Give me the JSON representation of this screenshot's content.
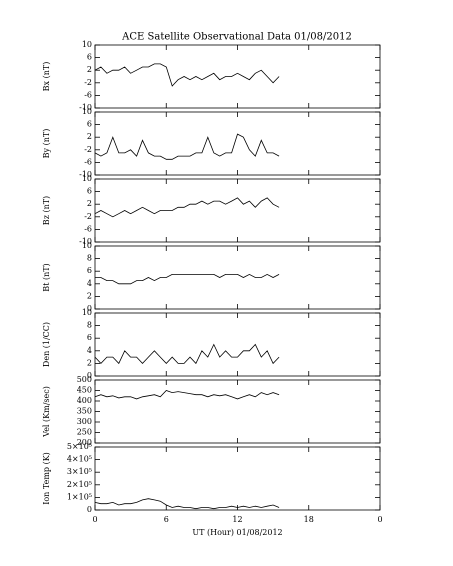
{
  "chart_data": [
    {
      "type": "line",
      "title": "ACE Satellite Observational Data   01/08/2012",
      "ylabel": "Bx (nT)",
      "color": "#000000",
      "x": [
        0,
        0.5,
        1,
        1.5,
        2,
        2.5,
        3,
        3.5,
        4,
        4.5,
        5,
        5.5,
        6,
        6.5,
        7,
        7.5,
        8,
        8.5,
        9,
        9.5,
        10,
        10.5,
        11,
        11.5,
        12,
        12.5,
        13,
        13.5,
        14,
        14.5,
        15,
        15.5
      ],
      "values": [
        2,
        3,
        1,
        2,
        2,
        3,
        1,
        2,
        3,
        3,
        4,
        4,
        3,
        -3,
        -1,
        0,
        -1,
        0,
        -1,
        0,
        1,
        -1,
        0,
        0,
        1,
        0,
        -1,
        1,
        2,
        0,
        -2,
        0
      ],
      "xlim": [
        0,
        24
      ],
      "xticks": [
        0,
        6,
        12,
        18,
        {
          "value": 24,
          "label": "0"
        }
      ],
      "ylim": [
        -10,
        10
      ],
      "yticks": [
        -10,
        -6,
        -2,
        2,
        6,
        10
      ]
    },
    {
      "type": "line",
      "ylabel": "By (nT)",
      "color": "#000000",
      "x": [
        0,
        0.5,
        1,
        1.5,
        2,
        2.5,
        3,
        3.5,
        4,
        4.5,
        5,
        5.5,
        6,
        6.5,
        7,
        7.5,
        8,
        8.5,
        9,
        9.5,
        10,
        10.5,
        11,
        11.5,
        12,
        12.5,
        13,
        13.5,
        14,
        14.5,
        15,
        15.5
      ],
      "values": [
        -3,
        -4,
        -3,
        2,
        -3,
        -3,
        -2,
        -4,
        1,
        -3,
        -4,
        -4,
        -5,
        -5,
        -4,
        -4,
        -4,
        -3,
        -3,
        2,
        -3,
        -4,
        -3,
        -3,
        3,
        2,
        -2,
        -4,
        1,
        -3,
        -3,
        -4
      ],
      "xlim": [
        0,
        24
      ],
      "xticks": [
        0,
        6,
        12,
        18,
        {
          "value": 24,
          "label": "0"
        }
      ],
      "ylim": [
        -10,
        10
      ],
      "yticks": [
        -10,
        -6,
        -2,
        2,
        6,
        10
      ]
    },
    {
      "type": "line",
      "ylabel": "Bz (nT)",
      "color": "#000000",
      "x": [
        0,
        0.5,
        1,
        1.5,
        2,
        2.5,
        3,
        3.5,
        4,
        4.5,
        5,
        5.5,
        6,
        6.5,
        7,
        7.5,
        8,
        8.5,
        9,
        9.5,
        10,
        10.5,
        11,
        11.5,
        12,
        12.5,
        13,
        13.5,
        14,
        14.5,
        15,
        15.5
      ],
      "values": [
        -1,
        0,
        -1,
        -2,
        -1,
        0,
        -1,
        0,
        1,
        0,
        -1,
        0,
        0,
        0,
        1,
        1,
        2,
        2,
        3,
        2,
        3,
        3,
        2,
        3,
        4,
        2,
        3,
        1,
        3,
        4,
        2,
        1
      ],
      "xlim": [
        0,
        24
      ],
      "xticks": [
        0,
        6,
        12,
        18,
        {
          "value": 24,
          "label": "0"
        }
      ],
      "ylim": [
        -10,
        10
      ],
      "yticks": [
        -10,
        -6,
        -2,
        2,
        6,
        10
      ]
    },
    {
      "type": "line",
      "ylabel": "Bt (nT)",
      "color": "#000000",
      "x": [
        0,
        0.5,
        1,
        1.5,
        2,
        2.5,
        3,
        3.5,
        4,
        4.5,
        5,
        5.5,
        6,
        6.5,
        7,
        7.5,
        8,
        8.5,
        9,
        9.5,
        10,
        10.5,
        11,
        11.5,
        12,
        12.5,
        13,
        13.5,
        14,
        14.5,
        15,
        15.5
      ],
      "values": [
        5,
        5,
        4.5,
        4.5,
        4,
        4,
        4,
        4.5,
        4.5,
        5,
        4.5,
        5,
        5,
        5.5,
        5.5,
        5.5,
        5.5,
        5.5,
        5.5,
        5.5,
        5.5,
        5,
        5.5,
        5.5,
        5.5,
        5,
        5.5,
        5,
        5,
        5.5,
        5,
        5.5
      ],
      "xlim": [
        0,
        24
      ],
      "xticks": [
        0,
        6,
        12,
        18,
        {
          "value": 24,
          "label": "0"
        }
      ],
      "ylim": [
        0,
        10
      ],
      "yticks": [
        0,
        2,
        4,
        6,
        8,
        10
      ]
    },
    {
      "type": "line",
      "ylabel": "Den (1/CC)",
      "color": "#000000",
      "x": [
        0,
        0.5,
        1,
        1.5,
        2,
        2.5,
        3,
        3.5,
        4,
        4.5,
        5,
        5.5,
        6,
        6.5,
        7,
        7.5,
        8,
        8.5,
        9,
        9.5,
        10,
        10.5,
        11,
        11.5,
        12,
        12.5,
        13,
        13.5,
        14,
        14.5,
        15,
        15.5
      ],
      "values": [
        3,
        2,
        3,
        3,
        2,
        4,
        3,
        3,
        2,
        3,
        4,
        3,
        2,
        3,
        2,
        2,
        3,
        2,
        4,
        3,
        5,
        3,
        4,
        3,
        3,
        4,
        4,
        5,
        3,
        4,
        2,
        3
      ],
      "xlim": [
        0,
        24
      ],
      "xticks": [
        0,
        6,
        12,
        18,
        {
          "value": 24,
          "label": "0"
        }
      ],
      "ylim": [
        0,
        10
      ],
      "yticks": [
        0,
        2,
        4,
        6,
        8,
        10
      ]
    },
    {
      "type": "line",
      "ylabel": "Vel (Km/sec)",
      "color": "#000000",
      "x": [
        0,
        0.5,
        1,
        1.5,
        2,
        2.5,
        3,
        3.5,
        4,
        4.5,
        5,
        5.5,
        6,
        6.5,
        7,
        7.5,
        8,
        8.5,
        9,
        9.5,
        10,
        10.5,
        11,
        11.5,
        12,
        12.5,
        13,
        13.5,
        14,
        14.5,
        15,
        15.5
      ],
      "values": [
        420,
        430,
        420,
        425,
        415,
        420,
        420,
        410,
        420,
        425,
        430,
        420,
        450,
        440,
        445,
        440,
        435,
        430,
        430,
        420,
        430,
        425,
        430,
        420,
        410,
        420,
        430,
        420,
        440,
        430,
        440,
        430
      ],
      "xlim": [
        0,
        24
      ],
      "xticks": [
        0,
        6,
        12,
        18,
        {
          "value": 24,
          "label": "0"
        }
      ],
      "ylim": [
        200,
        500
      ],
      "yticks": [
        200,
        250,
        300,
        350,
        400,
        450,
        500
      ]
    },
    {
      "type": "line",
      "ylabel": "Ion Temp (K)",
      "xlabel": "UT (Hour)  01/08/2012",
      "color": "#000000",
      "x": [
        0,
        0.5,
        1,
        1.5,
        2,
        2.5,
        3,
        3.5,
        4,
        4.5,
        5,
        5.5,
        6,
        6.5,
        7,
        7.5,
        8,
        8.5,
        9,
        9.5,
        10,
        10.5,
        11,
        11.5,
        12,
        12.5,
        13,
        13.5,
        14,
        14.5,
        15,
        15.5
      ],
      "values": [
        60000,
        50000,
        50000,
        60000,
        40000,
        50000,
        50000,
        60000,
        80000,
        90000,
        80000,
        70000,
        40000,
        20000,
        30000,
        20000,
        20000,
        10000,
        20000,
        20000,
        10000,
        20000,
        20000,
        30000,
        20000,
        30000,
        20000,
        30000,
        20000,
        30000,
        40000,
        20000
      ],
      "xlim": [
        0,
        24
      ],
      "xticks": [
        0,
        6,
        12,
        18,
        {
          "value": 24,
          "label": "0"
        }
      ],
      "ylim": [
        0,
        500000
      ],
      "yticks": [
        0,
        {
          "value": 100000,
          "label": "1×10⁵"
        },
        {
          "value": 200000,
          "label": "2×10⁵"
        },
        {
          "value": 300000,
          "label": "3×10⁵"
        },
        {
          "value": 400000,
          "label": "4×10⁵"
        },
        {
          "value": 500000,
          "label": "5×10⁵"
        }
      ]
    }
  ]
}
